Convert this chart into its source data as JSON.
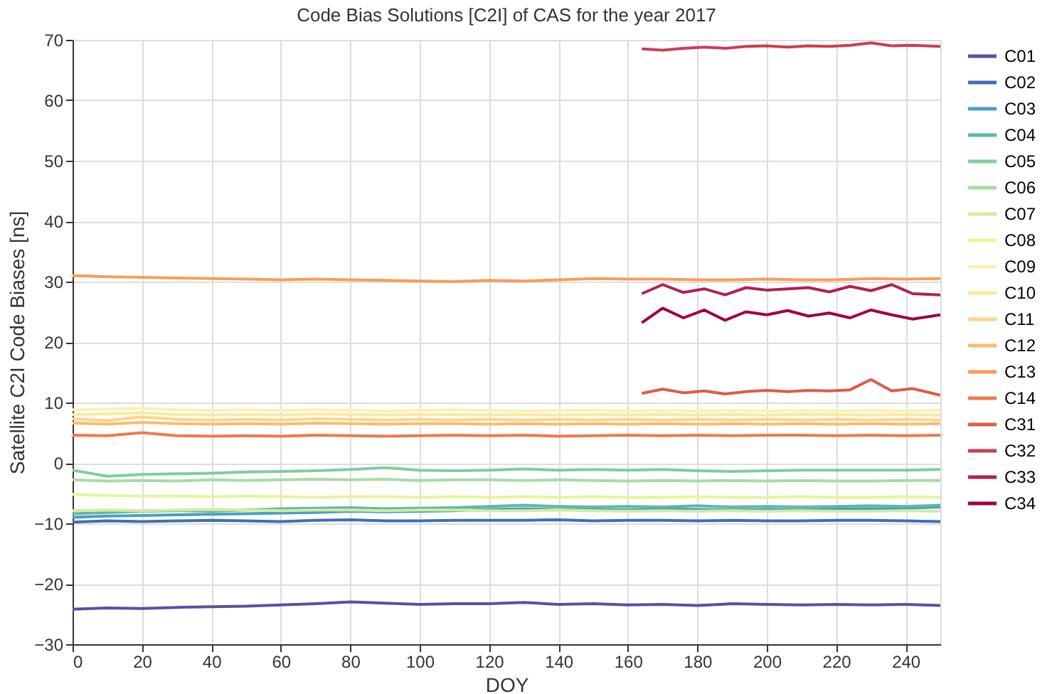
{
  "chart_data": {
    "type": "line",
    "title": "Code Bias Solutions [C2I] of CAS for the year 2017",
    "xlabel": "DOY",
    "ylabel": "Satellite C2I Code Biases [ns]",
    "x": [
      0,
      10,
      20,
      30,
      40,
      50,
      60,
      70,
      80,
      90,
      100,
      110,
      120,
      130,
      140,
      150,
      160,
      170,
      180,
      190,
      200,
      210,
      220,
      230,
      240,
      250
    ],
    "xlim": [
      0,
      250
    ],
    "xticks": [
      0,
      20,
      40,
      60,
      80,
      100,
      120,
      140,
      160,
      180,
      200,
      220,
      240
    ],
    "ylim": [
      -30,
      70
    ],
    "yticks": [
      -30,
      -20,
      -10,
      0,
      10,
      20,
      30,
      40,
      50,
      60,
      70
    ],
    "grid": true,
    "legend": "top right",
    "line_style": "solid",
    "marker": "none",
    "series": [
      {
        "name": "C01",
        "color": "#5e4fa2",
        "values": [
          -24.2,
          -24.0,
          -24.1,
          -23.9,
          -23.8,
          -23.7,
          -23.5,
          -23.3,
          -23.0,
          -23.2,
          -23.4,
          -23.3,
          -23.3,
          -23.1,
          -23.4,
          -23.3,
          -23.5,
          -23.4,
          -23.6,
          -23.3,
          -23.4,
          -23.5,
          -23.4,
          -23.5,
          -23.4,
          -23.6
        ]
      },
      {
        "name": "C02",
        "color": "#3f6fb5",
        "values": [
          -9.8,
          -9.6,
          -9.7,
          -9.6,
          -9.5,
          -9.6,
          -9.7,
          -9.5,
          -9.4,
          -9.6,
          -9.6,
          -9.5,
          -9.5,
          -9.5,
          -9.4,
          -9.6,
          -9.5,
          -9.5,
          -9.6,
          -9.5,
          -9.6,
          -9.6,
          -9.5,
          -9.5,
          -9.6,
          -9.7
        ]
      },
      {
        "name": "C03",
        "color": "#4a9fc6",
        "values": [
          -9.0,
          -8.8,
          -8.7,
          -8.6,
          -8.5,
          -8.4,
          -8.3,
          -8.2,
          -8.0,
          -8.1,
          -8.0,
          -7.9,
          -7.7,
          -7.6,
          -7.7,
          -7.7,
          -7.8,
          -7.6,
          -7.7,
          -7.8,
          -7.7,
          -7.8,
          -7.6,
          -7.6,
          -7.5,
          -7.3
        ]
      },
      {
        "name": "C04",
        "color": "#5fb7a8",
        "values": [
          -8.4,
          -8.2,
          -8.0,
          -7.9,
          -8.0,
          -7.8,
          -7.6,
          -7.5,
          -7.4,
          -7.6,
          -7.5,
          -7.4,
          -7.2,
          -7.0,
          -7.2,
          -7.3,
          -7.2,
          -7.3,
          -7.1,
          -7.3,
          -7.2,
          -7.3,
          -7.2,
          -7.1,
          -7.2,
          -7.0
        ]
      },
      {
        "name": "C05",
        "color": "#7fcda0",
        "values": [
          -1.2,
          -2.2,
          -1.9,
          -1.8,
          -1.7,
          -1.5,
          -1.4,
          -1.3,
          -1.1,
          -0.8,
          -1.2,
          -1.3,
          -1.2,
          -1.0,
          -1.2,
          -1.1,
          -1.2,
          -1.1,
          -1.3,
          -1.4,
          -1.3,
          -1.2,
          -1.2,
          -1.2,
          -1.2,
          -1.1
        ]
      },
      {
        "name": "C06",
        "color": "#a9dba4",
        "values": [
          -2.8,
          -3.0,
          -2.9,
          -3.0,
          -2.8,
          -2.9,
          -2.8,
          -2.7,
          -2.8,
          -2.7,
          -2.9,
          -2.8,
          -2.8,
          -2.9,
          -2.8,
          -2.9,
          -3.0,
          -2.9,
          -3.0,
          -2.9,
          -3.0,
          -2.9,
          -3.0,
          -3.0,
          -2.9,
          -2.9
        ]
      },
      {
        "name": "C07",
        "color": "#d3ec9c",
        "values": [
          -7.9,
          -7.8,
          -7.9,
          -7.8,
          -7.7,
          -7.8,
          -7.9,
          -7.8,
          -7.8,
          -7.9,
          -7.8,
          -7.8,
          -7.9,
          -7.9,
          -7.8,
          -7.9,
          -8.0,
          -7.9,
          -8.0,
          -7.9,
          -8.0,
          -7.9,
          -8.0,
          -8.0,
          -7.9,
          -8.0
        ]
      },
      {
        "name": "C08",
        "color": "#e6f598",
        "values": [
          -5.2,
          -5.4,
          -5.5,
          -5.5,
          -5.6,
          -5.5,
          -5.6,
          -5.7,
          -5.6,
          -5.6,
          -5.7,
          -5.6,
          -5.7,
          -5.6,
          -5.7,
          -5.6,
          -5.7,
          -5.7,
          -5.6,
          -5.7,
          -5.7,
          -5.6,
          -5.7,
          -5.7,
          -5.6,
          -5.7
        ]
      },
      {
        "name": "C09",
        "color": "#f7f3b0",
        "values": [
          8.8,
          8.9,
          9.0,
          8.8,
          8.7,
          8.8,
          8.7,
          8.8,
          8.7,
          8.6,
          8.7,
          8.8,
          8.7,
          8.6,
          8.7,
          8.7,
          8.6,
          8.7,
          8.6,
          8.7,
          8.6,
          8.7,
          8.6,
          8.7,
          8.6,
          8.7
        ]
      },
      {
        "name": "C10",
        "color": "#fee8a0",
        "values": [
          8.0,
          8.1,
          8.3,
          8.0,
          7.9,
          8.0,
          7.9,
          8.1,
          8.0,
          7.9,
          8.0,
          8.0,
          7.9,
          8.0,
          7.9,
          8.0,
          7.9,
          8.0,
          7.9,
          8.0,
          7.9,
          8.0,
          8.0,
          7.9,
          8.0,
          7.9
        ]
      },
      {
        "name": "C11",
        "color": "#fed48a",
        "values": [
          7.3,
          7.0,
          7.6,
          7.2,
          7.1,
          7.2,
          7.1,
          7.3,
          7.2,
          7.1,
          7.2,
          7.1,
          7.2,
          7.1,
          7.2,
          7.1,
          7.2,
          7.1,
          7.2,
          7.1,
          7.2,
          7.1,
          7.2,
          7.1,
          7.2,
          7.1
        ]
      },
      {
        "name": "C12",
        "color": "#fdbb6d",
        "values": [
          6.6,
          6.4,
          6.7,
          6.5,
          6.4,
          6.5,
          6.4,
          6.6,
          6.5,
          6.4,
          6.5,
          6.5,
          6.4,
          6.5,
          6.4,
          6.5,
          6.4,
          6.5,
          6.4,
          6.5,
          6.4,
          6.5,
          6.4,
          6.5,
          6.4,
          6.5
        ]
      },
      {
        "name": "C13",
        "color": "#f89d59",
        "values": [
          31.0,
          30.8,
          30.7,
          30.6,
          30.5,
          30.4,
          30.3,
          30.4,
          30.3,
          30.2,
          30.1,
          30.0,
          30.2,
          30.1,
          30.3,
          30.5,
          30.4,
          30.4,
          30.3,
          30.3,
          30.4,
          30.3,
          30.3,
          30.5,
          30.4,
          30.5
        ]
      },
      {
        "name": "C14",
        "color": "#ee7a4a",
        "values": [
          4.6,
          4.5,
          5.0,
          4.5,
          4.4,
          4.5,
          4.4,
          4.6,
          4.5,
          4.4,
          4.5,
          4.6,
          4.5,
          4.6,
          4.4,
          4.5,
          4.6,
          4.5,
          4.6,
          4.5,
          4.6,
          4.6,
          4.5,
          4.6,
          4.5,
          4.6
        ]
      },
      {
        "name": "C31",
        "color": "#e05a4a",
        "x": [
          164,
          170,
          176,
          182,
          188,
          194,
          200,
          206,
          212,
          218,
          224,
          230,
          236,
          242,
          250
        ],
        "values": [
          11.5,
          12.2,
          11.6,
          11.9,
          11.4,
          11.8,
          12.0,
          11.8,
          12.0,
          11.9,
          12.1,
          13.8,
          11.9,
          12.3,
          11.2
        ]
      },
      {
        "name": "C32",
        "color": "#cc3e53",
        "x": [
          164,
          170,
          176,
          182,
          188,
          194,
          200,
          206,
          212,
          218,
          224,
          230,
          236,
          242,
          250
        ],
        "values": [
          68.5,
          68.3,
          68.6,
          68.8,
          68.6,
          68.9,
          69.0,
          68.8,
          69.0,
          68.9,
          69.1,
          69.5,
          69.0,
          69.1,
          68.9
        ]
      },
      {
        "name": "C33",
        "color": "#b3214f",
        "x": [
          164,
          170,
          176,
          182,
          188,
          194,
          200,
          206,
          212,
          218,
          224,
          230,
          236,
          242,
          250
        ],
        "values": [
          28.0,
          29.5,
          28.2,
          28.8,
          27.8,
          29.0,
          28.6,
          28.8,
          29.0,
          28.3,
          29.2,
          28.5,
          29.5,
          28.0,
          27.8
        ]
      },
      {
        "name": "C34",
        "color": "#9e0142",
        "x": [
          164,
          170,
          176,
          182,
          188,
          194,
          200,
          206,
          212,
          218,
          224,
          230,
          236,
          242,
          250
        ],
        "values": [
          23.2,
          25.6,
          24.0,
          25.3,
          23.6,
          25.0,
          24.5,
          25.2,
          24.3,
          24.8,
          24.0,
          25.3,
          24.5,
          23.8,
          24.5
        ]
      }
    ]
  }
}
